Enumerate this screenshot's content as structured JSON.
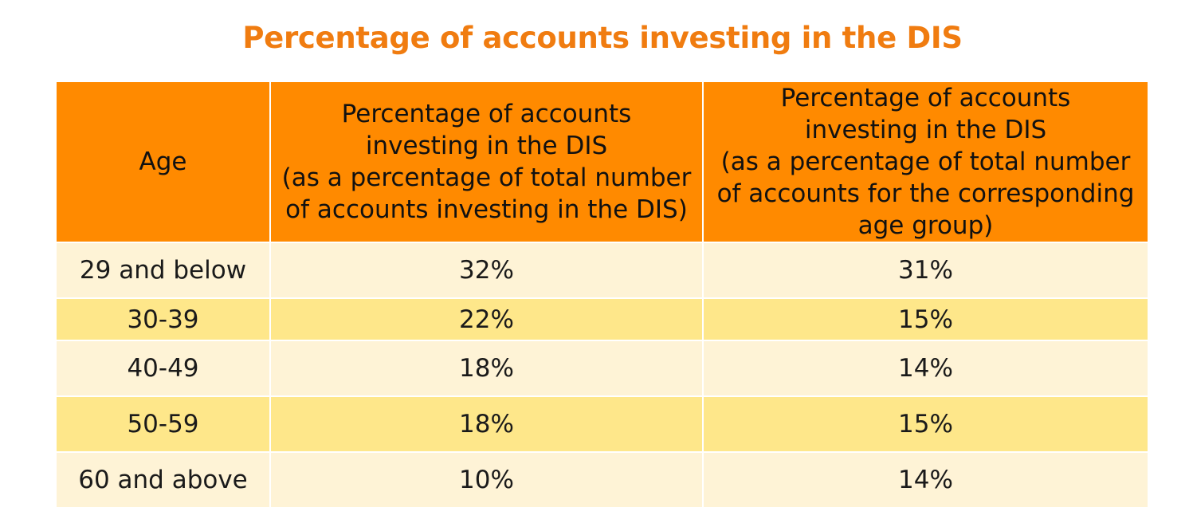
{
  "colors": {
    "title": "#F07C10",
    "header_bg": "#FF8A00",
    "row_light": "#FEF3D6",
    "row_dark": "#FEE78A",
    "grid": "#FFFFFF"
  },
  "chart_data": {
    "type": "table",
    "title": "Percentage of accounts investing in the DIS",
    "columns": [
      {
        "lines": [
          "Age"
        ]
      },
      {
        "lines": [
          "Percentage of accounts",
          "investing in the DIS",
          "(as a percentage of total number",
          "of accounts investing in the DIS)"
        ]
      },
      {
        "lines": [
          "Percentage of accounts",
          "investing in the DIS",
          "(as a percentage of total number",
          "of accounts for the corresponding",
          "age group)"
        ]
      }
    ],
    "rows": [
      {
        "age": "29 and below",
        "share_of_dis_accounts": "32%",
        "share_of_age_group": "31%"
      },
      {
        "age": "30-39",
        "share_of_dis_accounts": "22%",
        "share_of_age_group": "15%"
      },
      {
        "age": "40-49",
        "share_of_dis_accounts": "18%",
        "share_of_age_group": "14%"
      },
      {
        "age": "50-59",
        "share_of_dis_accounts": "18%",
        "share_of_age_group": "15%"
      },
      {
        "age": "60 and above",
        "share_of_dis_accounts": "10%",
        "share_of_age_group": "14%"
      }
    ]
  }
}
